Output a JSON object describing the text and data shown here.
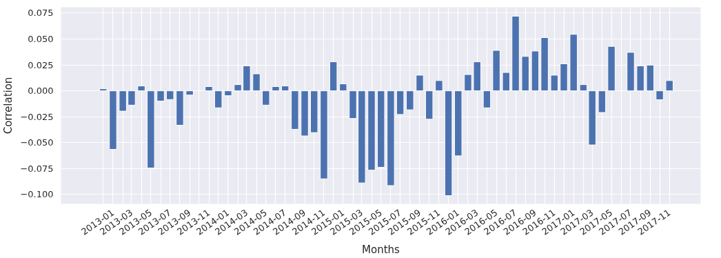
{
  "chart_data": {
    "type": "bar",
    "xlabel": "Months",
    "ylabel": "Correlation",
    "color": "#4c72b0",
    "grid": true,
    "x": [
      "2012-12",
      "2013-01",
      "2013-02",
      "2013-03",
      "2013-04",
      "2013-05",
      "2013-06",
      "2013-07",
      "2013-08",
      "2013-09",
      "2013-10",
      "2013-11",
      "2013-12",
      "2014-01",
      "2014-02",
      "2014-03",
      "2014-04",
      "2014-05",
      "2014-06",
      "2014-07",
      "2014-08",
      "2014-09",
      "2014-10",
      "2014-11",
      "2014-12",
      "2015-01",
      "2015-02",
      "2015-03",
      "2015-04",
      "2015-05",
      "2015-06",
      "2015-07",
      "2015-08",
      "2015-09",
      "2015-10",
      "2015-11",
      "2015-12",
      "2016-01",
      "2016-02",
      "2016-03",
      "2016-04",
      "2016-05",
      "2016-06",
      "2016-07",
      "2016-08",
      "2016-09",
      "2016-10",
      "2016-11",
      "2016-12",
      "2017-01",
      "2017-02",
      "2017-03",
      "2017-04",
      "2017-05",
      "2017-06",
      "2017-07",
      "2017-08",
      "2017-09",
      "2017-10",
      "2017-11"
    ],
    "values": [
      0.002,
      -0.0565,
      -0.0196,
      -0.0138,
      0.0047,
      -0.0744,
      -0.0099,
      -0.0084,
      -0.0332,
      -0.0041,
      null,
      0.0041,
      -0.0164,
      -0.0047,
      0.006,
      0.0241,
      0.0164,
      -0.0138,
      0.0041,
      0.0047,
      -0.0371,
      -0.0435,
      -0.0403,
      -0.0849,
      0.028,
      0.0067,
      -0.0267,
      -0.0888,
      -0.0765,
      -0.0737,
      -0.0914,
      -0.0228,
      -0.0183,
      0.0151,
      -0.0274,
      0.0099,
      -0.1011,
      -0.0627,
      0.0157,
      0.028,
      -0.0164,
      0.039,
      0.0177,
      0.072,
      0.0332,
      0.0384,
      0.0513,
      0.0151,
      0.0261,
      0.0545,
      0.006,
      -0.0522,
      -0.0209,
      0.0429,
      null,
      0.0371,
      0.0241,
      0.0248,
      -0.0086,
      0.0099
    ],
    "xlim": [
      "2012-07-20",
      "2018-02-08"
    ],
    "xticks": [
      {
        "value": "2012-12",
        "label": null
      },
      {
        "value": "2013-01",
        "label": "2013-01"
      },
      {
        "value": "2013-02",
        "label": null
      },
      {
        "value": "2013-03",
        "label": "2013-03"
      },
      {
        "value": "2013-04",
        "label": null
      },
      {
        "value": "2013-05",
        "label": "2013-05"
      },
      {
        "value": "2013-06",
        "label": null
      },
      {
        "value": "2013-07",
        "label": "2013-07"
      },
      {
        "value": "2013-08",
        "label": null
      },
      {
        "value": "2013-09",
        "label": "2013-09"
      },
      {
        "value": "2013-10",
        "label": null
      },
      {
        "value": "2013-11",
        "label": "2013-11"
      },
      {
        "value": "2013-12",
        "label": null
      },
      {
        "value": "2014-01",
        "label": "2014-01"
      },
      {
        "value": "2014-02",
        "label": null
      },
      {
        "value": "2014-03",
        "label": "2014-03"
      },
      {
        "value": "2014-04",
        "label": null
      },
      {
        "value": "2014-05",
        "label": "2014-05"
      },
      {
        "value": "2014-06",
        "label": null
      },
      {
        "value": "2014-07",
        "label": "2014-07"
      },
      {
        "value": "2014-08",
        "label": null
      },
      {
        "value": "2014-09",
        "label": "2014-09"
      },
      {
        "value": "2014-10",
        "label": null
      },
      {
        "value": "2014-11",
        "label": "2014-11"
      },
      {
        "value": "2014-12",
        "label": null
      },
      {
        "value": "2015-01",
        "label": "2015-01"
      },
      {
        "value": "2015-02",
        "label": null
      },
      {
        "value": "2015-03",
        "label": "2015-03"
      },
      {
        "value": "2015-04",
        "label": null
      },
      {
        "value": "2015-05",
        "label": "2015-05"
      },
      {
        "value": "2015-06",
        "label": null
      },
      {
        "value": "2015-07",
        "label": "2015-07"
      },
      {
        "value": "2015-08",
        "label": null
      },
      {
        "value": "2015-09",
        "label": "2015-09"
      },
      {
        "value": "2015-10",
        "label": null
      },
      {
        "value": "2015-11",
        "label": "2015-11"
      },
      {
        "value": "2015-12",
        "label": null
      },
      {
        "value": "2016-01",
        "label": "2016-01"
      },
      {
        "value": "2016-02",
        "label": null
      },
      {
        "value": "2016-03",
        "label": "2016-03"
      },
      {
        "value": "2016-04",
        "label": null
      },
      {
        "value": "2016-05",
        "label": "2016-05"
      },
      {
        "value": "2016-06",
        "label": null
      },
      {
        "value": "2016-07",
        "label": "2016-07"
      },
      {
        "value": "2016-08",
        "label": null
      },
      {
        "value": "2016-09",
        "label": "2016-09"
      },
      {
        "value": "2016-10",
        "label": null
      },
      {
        "value": "2016-11",
        "label": "2016-11"
      },
      {
        "value": "2016-12",
        "label": null
      },
      {
        "value": "2017-01",
        "label": "2017-01"
      },
      {
        "value": "2017-02",
        "label": null
      },
      {
        "value": "2017-03",
        "label": "2017-03"
      },
      {
        "value": "2017-04",
        "label": null
      },
      {
        "value": "2017-05",
        "label": "2017-05"
      },
      {
        "value": "2017-06",
        "label": null
      },
      {
        "value": "2017-07",
        "label": "2017-07"
      },
      {
        "value": "2017-08",
        "label": null
      },
      {
        "value": "2017-09",
        "label": "2017-09"
      },
      {
        "value": "2017-10",
        "label": null
      },
      {
        "value": "2017-11",
        "label": "2017-11"
      }
    ],
    "ylim": [
      -0.109,
      0.0806
    ],
    "yticks": [
      {
        "value": -0.1,
        "label": "−0.100"
      },
      {
        "value": -0.075,
        "label": "−0.075"
      },
      {
        "value": -0.05,
        "label": "−0.050"
      },
      {
        "value": -0.025,
        "label": "−0.025"
      },
      {
        "value": 0,
        "label": "0.000"
      },
      {
        "value": 0.025,
        "label": "0.025"
      },
      {
        "value": 0.05,
        "label": "0.050"
      },
      {
        "value": 0.075,
        "label": "0.075"
      }
    ]
  }
}
